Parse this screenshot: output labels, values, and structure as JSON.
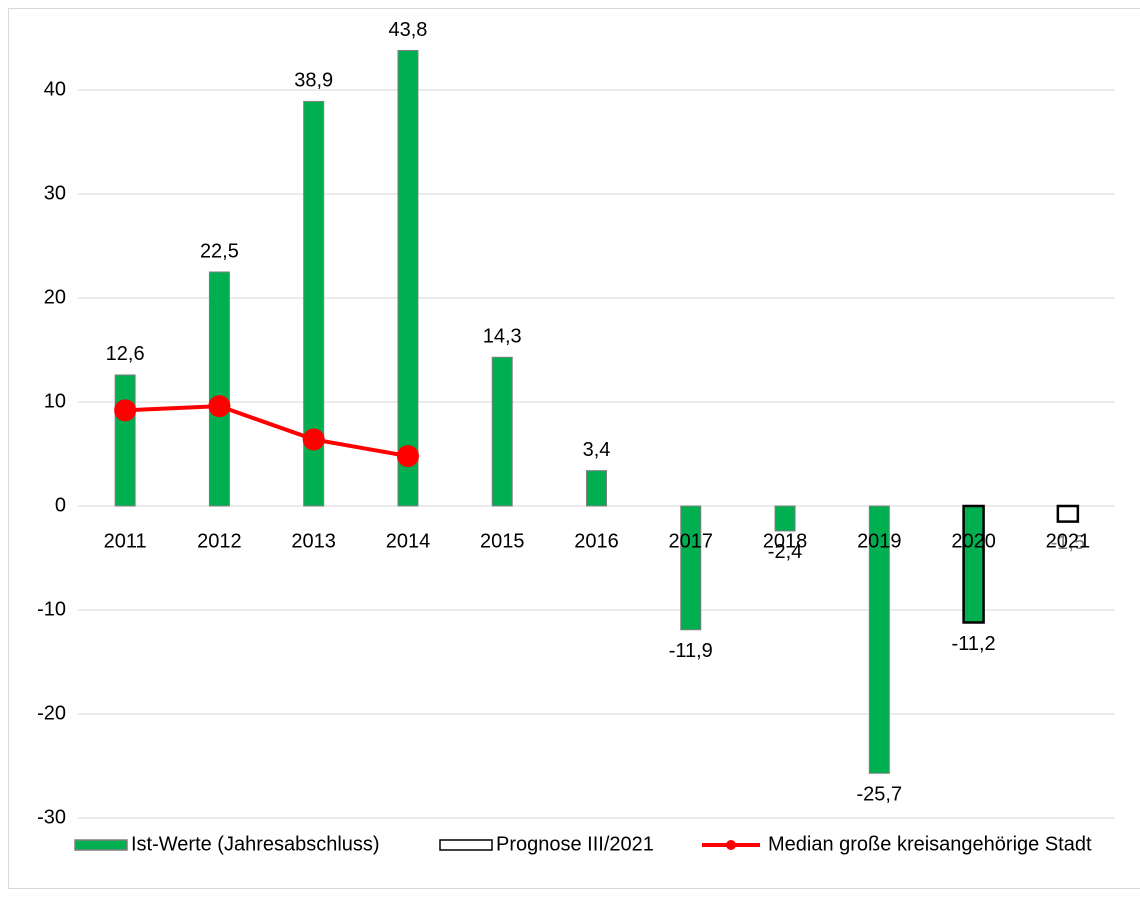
{
  "chart_data": {
    "type": "bar",
    "categories": [
      "2011",
      "2012",
      "2013",
      "2014",
      "2015",
      "2016",
      "2017",
      "2018",
      "2019",
      "2020",
      "2021"
    ],
    "series": [
      {
        "name": "Ist-Werte (Jahresabschluss)",
        "type": "bar",
        "color": "#00b050",
        "stroke": "#7f7f7f",
        "label_color": "#000000",
        "values": [
          12.6,
          22.5,
          38.9,
          43.8,
          14.3,
          3.4,
          -11.9,
          -2.4,
          -25.7,
          -11.2,
          null
        ],
        "value_labels": [
          "12,6",
          "22,5",
          "38,9",
          "43,8",
          "14,3",
          "3,4",
          "-11,9",
          "-2,4",
          "-25,7",
          "-11,2",
          null
        ]
      },
      {
        "name": "Prognose III/2021",
        "type": "bar",
        "color": "#ffffff",
        "stroke": "#000000",
        "label_color": "#7f7f7f",
        "values": [
          null,
          null,
          null,
          null,
          null,
          null,
          null,
          null,
          null,
          -11.2,
          -1.5
        ],
        "value_labels": [
          null,
          null,
          null,
          null,
          null,
          null,
          null,
          null,
          null,
          null,
          "-1,5"
        ]
      },
      {
        "name": "Median große kreisangehörige Stadt",
        "type": "line",
        "color": "#ff0000",
        "values": [
          9.2,
          9.6,
          6.4,
          4.8,
          null,
          null,
          null,
          null,
          null,
          null,
          null
        ]
      }
    ],
    "ylim": [
      -30,
      45
    ],
    "yticks": [
      -30,
      -20,
      -10,
      0,
      10,
      20,
      30,
      40
    ],
    "grid": true,
    "legend": "bottom"
  }
}
